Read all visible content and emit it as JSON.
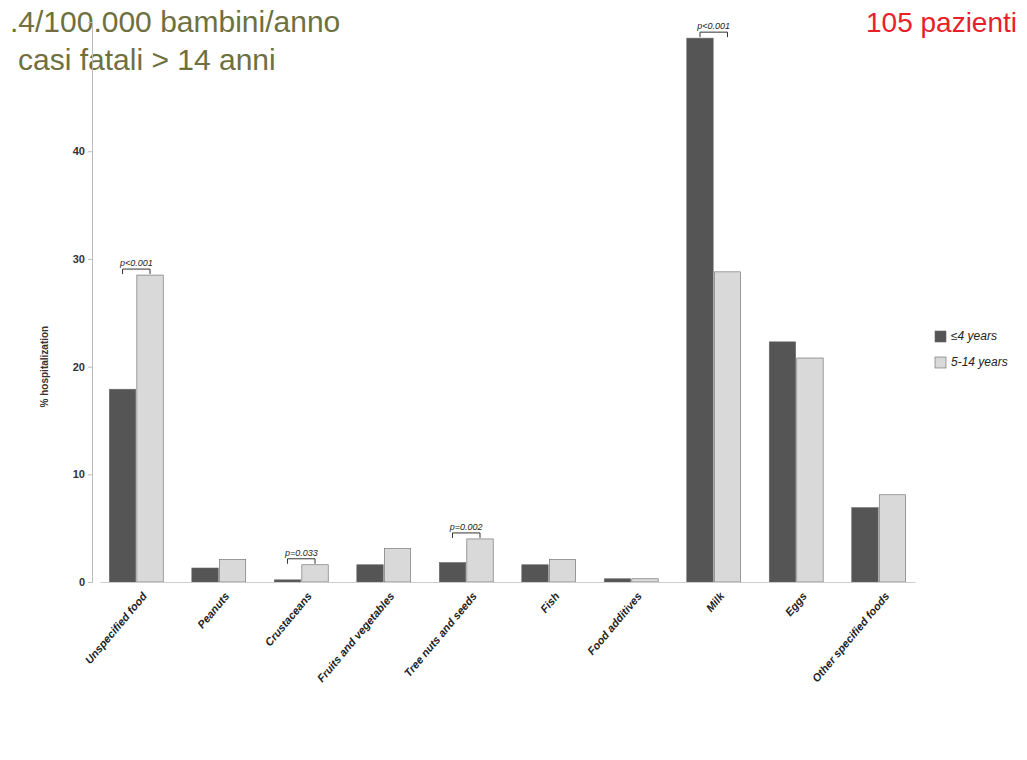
{
  "chart_data": {
    "type": "bar",
    "annotations": [
      {
        "text": ".4/100.000 bambini/anno",
        "color": "#6e7040"
      },
      {
        "text": "casi fatali > 14 anni",
        "color": "#6e7040"
      },
      {
        "text": "105 pazienti",
        "color": "#e8202a"
      }
    ],
    "y_label": "% hospitalization",
    "categories": [
      "Unspecified food",
      "Peanuts",
      "Crustaceans",
      "Fruits and vegetables",
      "Tree nuts and seeds",
      "Fish",
      "Food additives",
      "Milk",
      "Eggs",
      "Other specified foods"
    ],
    "series": [
      {
        "name": "≤4 years",
        "color": "#555555",
        "values": [
          17.9,
          1.3,
          0.2,
          1.6,
          1.8,
          1.6,
          0.3,
          50.5,
          22.3,
          6.9
        ]
      },
      {
        "name": "5-14 years",
        "color": "#d9d9d9",
        "values": [
          28.5,
          2.1,
          1.6,
          3.1,
          4.0,
          2.1,
          0.3,
          28.8,
          20.8,
          8.1
        ]
      }
    ],
    "significance": [
      {
        "category": "Unspecified food",
        "label": "p<0.001"
      },
      {
        "category": "Crustaceans",
        "label": "p=0.033"
      },
      {
        "category": "Tree nuts and seeds",
        "label": "p=0.002"
      },
      {
        "category": "Milk",
        "label": "p<0.001"
      }
    ],
    "ylim": [
      0,
      52
    ],
    "yticks": [
      0,
      10,
      20,
      30,
      40
    ],
    "grid": false,
    "legend": "right"
  }
}
